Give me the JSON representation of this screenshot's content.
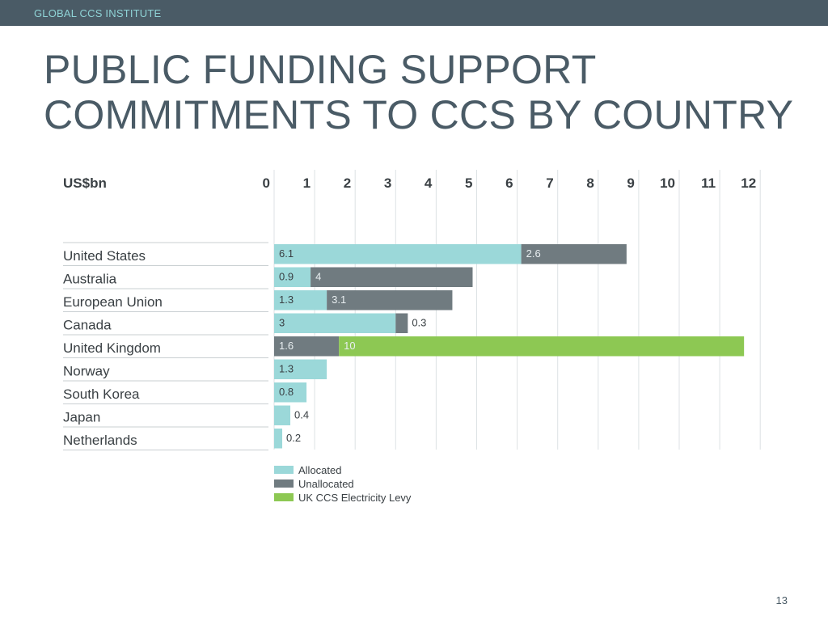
{
  "header": {
    "org_name": "GLOBAL CCS INSTITUTE"
  },
  "slide": {
    "title_line1": "PUBLIC FUNDING SUPPORT",
    "title_line2": "COMMITMENTS TO CCS BY COUNTRY",
    "page_number": "13"
  },
  "colors": {
    "header_bar": "#4a5b66",
    "header_text": "#8fd3d6",
    "title": "#4a5b66",
    "allocated": "#9bd8d9",
    "unallocated": "#707b80",
    "levy": "#8dc853"
  },
  "chart_data": {
    "type": "bar",
    "orientation": "horizontal",
    "stacked": true,
    "unit_label": "US$bn",
    "x_ticks": [
      "0",
      "1",
      "2",
      "3",
      "4",
      "5",
      "6",
      "7",
      "8",
      "9",
      "10",
      "11",
      "12"
    ],
    "xlim": [
      0,
      12
    ],
    "grid": true,
    "legend_position": "bottom-left",
    "categories": [
      "United States",
      "Australia",
      "European Union",
      "Canada",
      "United Kingdom",
      "Norway",
      "South Korea",
      "Japan",
      "Netherlands"
    ],
    "series": [
      {
        "name": "Allocated",
        "color": "#9bd8d9",
        "values": [
          6.1,
          0.9,
          1.3,
          3,
          0,
          1.3,
          0.8,
          0.4,
          0.2
        ]
      },
      {
        "name": "Unallocated",
        "color": "#707b80",
        "values": [
          2.6,
          4,
          3.1,
          0.3,
          1.6,
          0,
          0,
          0,
          0
        ]
      },
      {
        "name": "UK CCS Electricity Levy",
        "color": "#8dc853",
        "values": [
          0,
          0,
          0,
          0,
          10,
          0,
          0,
          0,
          0
        ]
      }
    ],
    "data_labels": [
      [
        "6.1",
        "2.6",
        ""
      ],
      [
        "0.9",
        "4",
        ""
      ],
      [
        "1.3",
        "3.1",
        ""
      ],
      [
        "3",
        "0.3",
        ""
      ],
      [
        "",
        "1.6",
        "10"
      ],
      [
        "1.3",
        "",
        ""
      ],
      [
        "0.8",
        "",
        ""
      ],
      [
        "0.4",
        "",
        ""
      ],
      [
        "0.2",
        "",
        ""
      ]
    ]
  }
}
